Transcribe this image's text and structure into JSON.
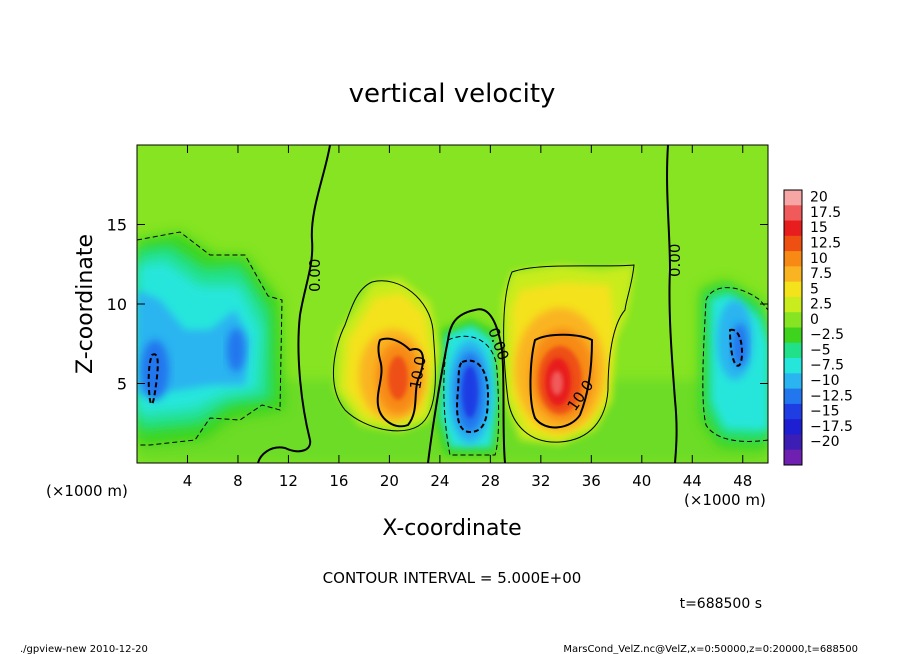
{
  "chart_data": {
    "type": "heatmap",
    "title": "vertical velocity",
    "xlabel": "X-coordinate",
    "ylabel": "Z-coordinate",
    "x_unit_label": "(×1000 m)",
    "x_unit_label_right": "(×1000 m)",
    "xlim": [
      0,
      50
    ],
    "ylim": [
      0,
      20
    ],
    "x_ticks": [
      4,
      8,
      12,
      16,
      20,
      24,
      28,
      32,
      36,
      40,
      44,
      48
    ],
    "y_ticks": [
      5,
      10,
      15
    ],
    "colorbar": {
      "labels": [
        "20",
        "17.5",
        "15",
        "12.5",
        "10",
        "7.5",
        "5",
        "2.5",
        "0",
        "−2.5",
        "−5",
        "−7.5",
        "−10",
        "−12.5",
        "−15",
        "−17.5",
        "−20"
      ],
      "colors": [
        "#f7a6a6",
        "#f05a5a",
        "#e81e1e",
        "#ee5012",
        "#f78a14",
        "#fab422",
        "#f4e21c",
        "#c8ec1e",
        "#86e422",
        "#3ed41e",
        "#20e08a",
        "#26e6dc",
        "#2ab4f0",
        "#2276ee",
        "#1e3ee4",
        "#1e1ed2",
        "#3c1eb4",
        "#7020b0"
      ]
    },
    "features": [
      {
        "kind": "downdraft",
        "x": 1.5,
        "z": 5.5,
        "w": -12.5
      },
      {
        "kind": "downdraft",
        "x": 7.5,
        "z": 7.0,
        "w": -7.5
      },
      {
        "kind": "updraft",
        "x": 20,
        "z": 5.5,
        "w": 12.5
      },
      {
        "kind": "downdraft",
        "x": 26.5,
        "z": 4.5,
        "w": -15
      },
      {
        "kind": "updraft",
        "x": 33,
        "z": 5.5,
        "w": 17.5
      },
      {
        "kind": "downdraft",
        "x": 47,
        "z": 7.0,
        "w": -10
      }
    ],
    "contour_labels": [
      "0.00",
      "10.0",
      "0.00",
      "10.0",
      "0.00"
    ],
    "contour_interval": "CONTOUR INTERVAL = 5.000E+00",
    "time": "t=688500 s"
  },
  "footer": {
    "left": "./gpview-new   2010-12-20",
    "right": "MarsCond_VelZ.nc@VelZ,x=0:50000,z=0:20000,t=688500"
  }
}
